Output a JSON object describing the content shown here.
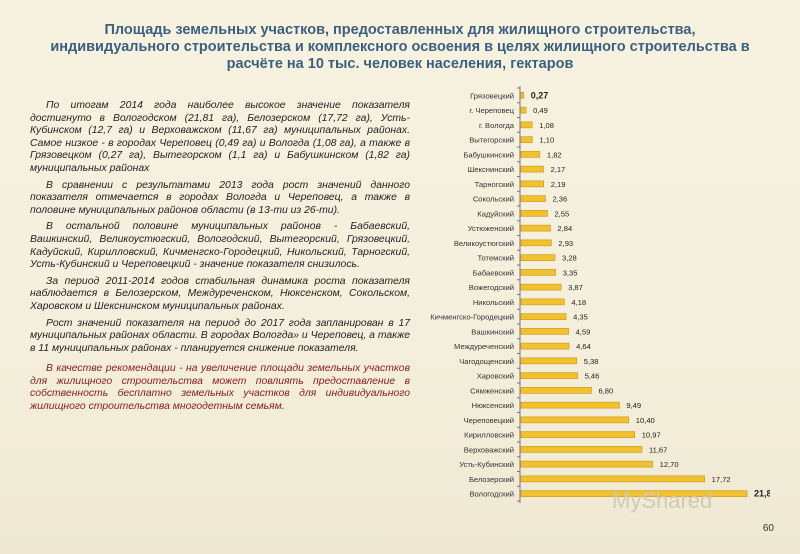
{
  "slide": {
    "title_line1": "Площадь земельных участков, предоставленных для жилищного строительства,",
    "title_line2": "индивидуального строительства и комплексного освоения в целях жилищного строительства в",
    "title_line3": "расчёте на 10 тыс. человек населения, гектаров",
    "page_number": "60",
    "watermark": "MyShared"
  },
  "text": {
    "p1": "По итогам 2014 года наиболее высокое значение показателя достигнуто в Вологодском (21,81 га), Белозерском (17,72 га), Усть-Кубинском (12,7 га) и Верховажском (11,67 га) муниципальных районах. Самое низкое - в городах Череповец (0,49 га) и Вологда (1,08 га), а также в Грязовецком (0,27 га), Вытегорском (1,1 га) и Бабушкинском (1,82 га) муниципальных районах",
    "p2": "В сравнении с результатами 2013 года рост значений данного показателя отмечается в городах Вологда и Череповец, а также в половине муниципальных районов области (в 13-ти из 26-ти).",
    "p3": "В остальной половине муниципальных районов - Бабаевский, Вашкинский, Великоустюгский, Вологодский, Вытегорский, Грязовецкий, Кадуйский, Кирилловский, Кичменгско-Городецкий, Никольский, Тарногский, Усть-Кубинский и Череповецкий - значение показателя снизилось.",
    "p4": "За период 2011-2014 годов стабильная динамика роста показателя наблюдается в Белозерском, Междуреченском, Нюксенском, Сокольском, Харовском и Шекснинском муниципальных районах.",
    "p5": "Рост значений показателя на период до 2017 года запланирован в 17 муниципальных районах области. В городах Вологда» и Череповец, а также в 11 муниципальных районах - планируется снижение показателя.",
    "p6": "В качестве рекомендации - на увеличение площади земельных участков для жилищного строительства может повлиять предоставление в собственность бесплатно земельных участков для индивидуального жилищного строительства многодетным семьям."
  },
  "chart_data": {
    "type": "bar",
    "orientation": "horizontal",
    "categories": [
      "Грязовецкий",
      "г. Череповец",
      "г. Вологда",
      "Вытегорский",
      "Бабушкинский",
      "Шекснинский",
      "Тарногский",
      "Сокольский",
      "Кадуйский",
      "Устюженский",
      "Великоустюгский",
      "Тотемский",
      "Бабаевский",
      "Вожегодский",
      "Никольский",
      "Кичменгско-Городецкий",
      "Вашкинский",
      "Междуреченский",
      "Чагодощенский",
      "Харовский",
      "Сямженский",
      "Нюксенский",
      "Череповецкий",
      "Кирилловский",
      "Верховажский",
      "Усть-Кубинский",
      "Белозерский",
      "Вологодский"
    ],
    "values": [
      0.27,
      0.49,
      1.08,
      1.1,
      1.82,
      2.17,
      2.19,
      2.36,
      2.55,
      2.84,
      2.93,
      3.28,
      3.35,
      3.87,
      4.18,
      4.35,
      4.59,
      4.64,
      5.38,
      5.46,
      6.8,
      9.49,
      10.4,
      10.97,
      11.67,
      12.7,
      17.72,
      21.81
    ],
    "value_labels": [
      "0,27",
      "0,49",
      "1,08",
      "1,10",
      "1,82",
      "2,17",
      "2,19",
      "2,36",
      "2,55",
      "2,84",
      "2,93",
      "3,28",
      "3,35",
      "3,87",
      "4,18",
      "4,35",
      "4,59",
      "4,64",
      "5,38",
      "5,46",
      "6,80",
      "9,49",
      "10,40",
      "10,97",
      "11,67",
      "12,70",
      "17,72",
      "21,81"
    ],
    "xlim": [
      0,
      22
    ],
    "bar_color": "#f2c12e",
    "bar_edge_color": "#c9951a",
    "grid": false
  }
}
